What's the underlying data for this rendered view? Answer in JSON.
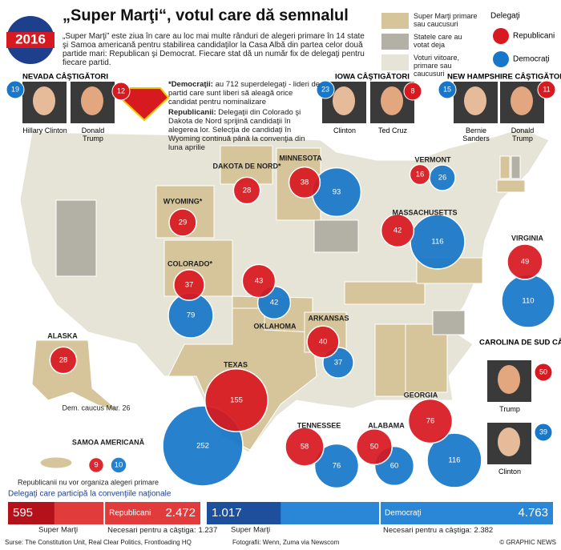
{
  "header": {
    "badge": "2016",
    "title": "„Super Marţi“, votul care dă semnalul",
    "intro": "„Super Marţi” este ziua în care au loc mai multe rânduri de alegeri primare în 14 state şi Samoa americană pentru stabilirea candidaţilor la Casa Albă din partea celor două partide mari: Republican şi Democrat. Fiecare stat dă un număr fix de delegaţi pentru fiecare partid."
  },
  "legend": {
    "items": [
      "Super Marţi primare sau caucusuri",
      "Statele care au votat deja",
      "Voturi viitoare, primare sau caucusuri"
    ],
    "delegates_title": "Delegaţi",
    "republicans": "Republicani",
    "democrats": "Democraţi"
  },
  "notes": {
    "dem_label": "*Democraţii:",
    "dem_text": "au 712 superdelegaţi - lideri de partid care sunt liberi să aleagă orice candidat pentru nominalizare",
    "rep_label": "Republicanii:",
    "rep_text": "Delegaţii din Colorado şi Dakota de Nord sprijină candidaţii în alegerea lor. Selecţia de candidaţi în Wyoming continuă până la convenţia din luna aprilie"
  },
  "winners": [
    {
      "title": "NEVADA CÂŞTIGĂTORI",
      "candidates": [
        {
          "name": "Hillary Clinton",
          "party": "dem",
          "delegates": 19
        },
        {
          "name": "Donald Trump",
          "party": "rep",
          "delegates": 12
        }
      ]
    },
    {
      "title": "IOWA CÂŞTIGĂTORI",
      "candidates": [
        {
          "name": "Clinton",
          "party": "dem",
          "delegates": 23
        },
        {
          "name": "Ted Cruz",
          "party": "rep",
          "delegates": 8
        }
      ]
    },
    {
      "title": "NEW HAMPSHIRE CÂŞTIGĂTORI",
      "candidates": [
        {
          "name": "Bernie Sanders",
          "party": "dem",
          "delegates": 15
        },
        {
          "name": "Donald Trump",
          "party": "rep",
          "delegates": 11
        }
      ]
    },
    {
      "title": "CAROLINA DE SUD CÂŞTIGĂTORI",
      "candidates": [
        {
          "name": "Trump",
          "party": "rep",
          "delegates": 50
        },
        {
          "name": "Clinton",
          "party": "dem",
          "delegates": 39
        }
      ]
    }
  ],
  "states": [
    {
      "name": "DAKOTA DE NORD*",
      "rep": 28
    },
    {
      "name": "MINNESOTA",
      "rep": 38,
      "dem": 93
    },
    {
      "name": "WYOMING*",
      "rep": 29
    },
    {
      "name": "COLORADO*",
      "rep": 37,
      "dem": 79
    },
    {
      "name": "OKLAHOMA",
      "rep": 43,
      "dem": 42
    },
    {
      "name": "TEXAS",
      "rep": 155,
      "dem": 252
    },
    {
      "name": "ARKANSAS",
      "rep": 40,
      "dem": 37
    },
    {
      "name": "TENNESSEE",
      "rep": 58,
      "dem": 76
    },
    {
      "name": "ALABAMA",
      "rep": 50,
      "dem": 60
    },
    {
      "name": "GEORGIA",
      "rep": 76,
      "dem": 116
    },
    {
      "name": "MASSACHUSETTS",
      "rep": 42,
      "dem": 116
    },
    {
      "name": "VERMONT",
      "rep": 16,
      "dem": 26
    },
    {
      "name": "VIRGINIA",
      "rep": 49,
      "dem": 110
    },
    {
      "name": "ALASKA",
      "rep": 28,
      "note": "Dem. caucus Mar. 26"
    },
    {
      "name": "SAMOA AMERICANĂ",
      "rep": 9,
      "dem": 10,
      "note": "Republicanii nu vor organiza alegeri primare"
    }
  ],
  "convention": {
    "title": "Delegaţi care participă la convenţiile naţionale",
    "super_label": "Super Marţi",
    "needed_label": "Necesari pentru a câştiga:",
    "rep": {
      "name": "Republicani",
      "super": 595,
      "total": {
        "value": 2472,
        "label": "2.472"
      },
      "needed": {
        "value": 1237,
        "label": "1.237"
      }
    },
    "dem": {
      "name": "Democraţi",
      "super": {
        "value": 1017,
        "label": "1.017"
      },
      "total": {
        "value": 4763,
        "label": "4.763"
      },
      "needed": {
        "value": 2382,
        "label": "2.382"
      }
    }
  },
  "footer": {
    "sources": "Surse: The Constitution Unit, Real Clear Politics, Frontloading HQ",
    "photos": "Fotografii: Wenn, Zuma via Newscom",
    "credit": "© GRAPHIC NEWS"
  }
}
